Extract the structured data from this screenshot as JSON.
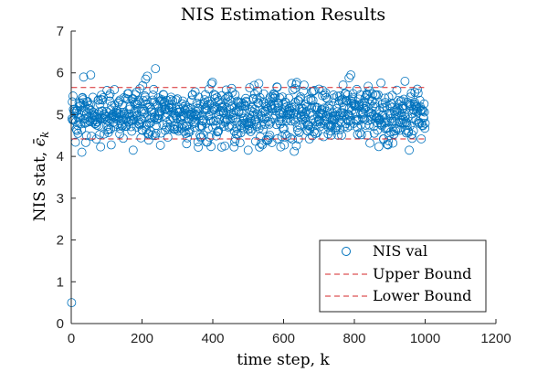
{
  "chart_data": {
    "type": "scatter",
    "title": "NIS Estimation Results",
    "xlabel": "time step, k",
    "ylabel_main": "NIS stat, ",
    "ylabel_symbol": "ϵ̄",
    "ylabel_sub": "k",
    "xlim": [
      0,
      1200
    ],
    "ylim": [
      0,
      7
    ],
    "xticks": [
      0,
      200,
      400,
      600,
      800,
      1000,
      1200
    ],
    "yticks": [
      0,
      1,
      2,
      3,
      4,
      5,
      6,
      7
    ],
    "grid": false,
    "legend_position": "bottom-right",
    "series": [
      {
        "name": "NIS val",
        "marker": "circle",
        "color": "#0072BD",
        "note_count": 1000,
        "x_range": [
          1,
          1000
        ],
        "y_mean": 5.0,
        "y_spread": 0.32,
        "highlighted_points": [
          {
            "x": 1,
            "y": 0.5
          },
          {
            "x": 30,
            "y": 4.1
          },
          {
            "x": 35,
            "y": 5.9
          },
          {
            "x": 55,
            "y": 5.95
          },
          {
            "x": 175,
            "y": 4.15
          },
          {
            "x": 210,
            "y": 5.85
          },
          {
            "x": 215,
            "y": 5.92
          },
          {
            "x": 238,
            "y": 6.1
          },
          {
            "x": 500,
            "y": 4.15
          },
          {
            "x": 630,
            "y": 4.12
          },
          {
            "x": 785,
            "y": 5.88
          },
          {
            "x": 790,
            "y": 5.95
          },
          {
            "x": 955,
            "y": 4.15
          }
        ]
      },
      {
        "name": "Upper Bound",
        "line": "dashed",
        "color": "#D62728",
        "x": [
          1,
          1000
        ],
        "y": [
          5.65,
          5.65
        ]
      },
      {
        "name": "Lower Bound",
        "line": "dashed",
        "color": "#D62728",
        "x": [
          1,
          1000
        ],
        "y": [
          4.42,
          4.42
        ]
      }
    ]
  }
}
